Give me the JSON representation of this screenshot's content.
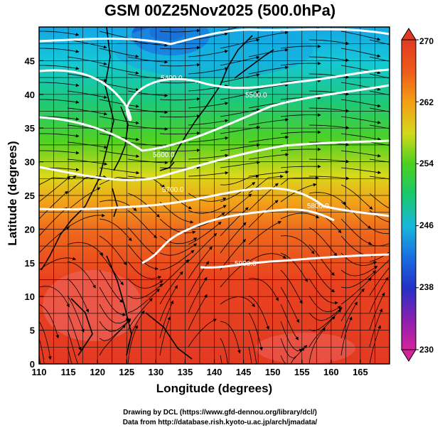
{
  "title": "GSM 00Z25Nov2025 (500.0hPa)",
  "axes": {
    "xlabel": "Longitude (degrees)",
    "ylabel": "Latitude  (degrees)",
    "x_ticks": [
      "110",
      "115",
      "120",
      "125",
      "130",
      "135",
      "140",
      "145",
      "150",
      "155",
      "160",
      "165"
    ],
    "y_ticks": [
      "0",
      "5",
      "10",
      "15",
      "20",
      "25",
      "30",
      "35",
      "40",
      "45"
    ],
    "xlim": [
      110,
      170
    ],
    "ylim": [
      0,
      50
    ]
  },
  "colorbar": {
    "min_label": "230",
    "max_label": "270",
    "tick_labels": [
      "270",
      "262",
      "254",
      "246",
      "238",
      "230"
    ],
    "colors": [
      "#d4249a",
      "#8a1fb0",
      "#2231c8",
      "#1a84e2",
      "#18c2d6",
      "#19c86a",
      "#4bd11f",
      "#d6d81a",
      "#f39e14",
      "#ee5a1a",
      "#e03a22"
    ]
  },
  "contours": {
    "labels": [
      "5400.0",
      "5500.0",
      "5600.0",
      "5700.0",
      "5800.0",
      "5900.0"
    ]
  },
  "credits": {
    "line1": "Drawing by DCL (https://www.gfd-dennou.org/library/dcl/)",
    "line2": "Data from http://database.rish.kyoto-u.ac.jp/arch/jmadata/"
  }
}
